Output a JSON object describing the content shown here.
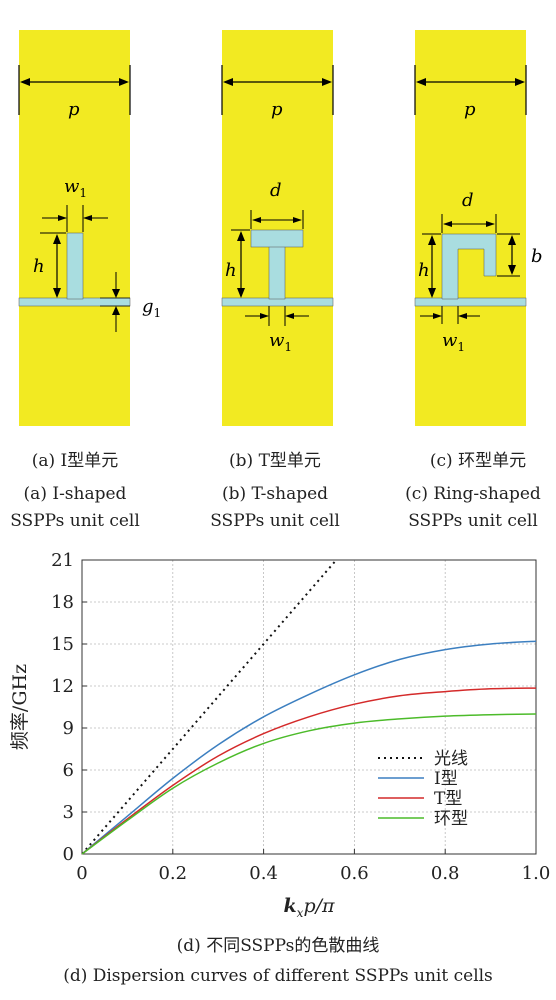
{
  "cells": [
    {
      "id": "a",
      "label_p": "p",
      "label_w": "w",
      "label_w_sub": "1",
      "label_h": "h",
      "label_g": "g",
      "label_g_sub": "1",
      "caption_cn": "(a) I型单元",
      "caption_en_1": "(a) I-shaped",
      "caption_en_2": "SSPPs unit cell"
    },
    {
      "id": "b",
      "label_p": "p",
      "label_d": "d",
      "label_h": "h",
      "label_w": "w",
      "label_w_sub": "1",
      "caption_cn": "(b) T型单元",
      "caption_en_1": "(b) T-shaped",
      "caption_en_2": "SSPPs unit cell"
    },
    {
      "id": "c",
      "label_p": "p",
      "label_d": "d",
      "label_h": "h",
      "label_b": "b",
      "label_w": "w",
      "label_w_sub": "1",
      "caption_cn": "(c) 环型单元",
      "caption_en_1": "(c) Ring-shaped",
      "caption_en_2": "SSPPs unit cell"
    }
  ],
  "colors": {
    "metal": "#f2ea22",
    "substrate_strip": "#a9dde0",
    "light_line": "#111111",
    "I": "#3c7fc0",
    "T": "#d42a2a",
    "ring": "#4cbb2a"
  },
  "chart_data": {
    "type": "line",
    "xlabel_main": "k",
    "xlabel_sub": "x",
    "xlabel_rest": "p/π",
    "ylabel": "频率/GHz",
    "xlim": [
      0,
      1.0
    ],
    "ylim": [
      0,
      21
    ],
    "xticks": [
      "0",
      "0.2",
      "0.4",
      "0.6",
      "0.8",
      "1.0"
    ],
    "yticks": [
      "0",
      "3",
      "6",
      "9",
      "12",
      "15",
      "18",
      "21"
    ],
    "grid": true,
    "legend_position": "center-right",
    "series": [
      {
        "name": "光线",
        "style": "dotted",
        "color": "#111111",
        "x": [
          0,
          0.1,
          0.2,
          0.3,
          0.4,
          0.5,
          0.56
        ],
        "y": [
          0,
          3.75,
          7.5,
          11.25,
          15.0,
          18.75,
          21.0
        ]
      },
      {
        "name": "I型",
        "style": "solid",
        "color": "#3c7fc0",
        "x": [
          0,
          0.1,
          0.2,
          0.3,
          0.4,
          0.5,
          0.6,
          0.7,
          0.8,
          0.9,
          1.0
        ],
        "y": [
          0,
          2.7,
          5.4,
          7.8,
          9.8,
          11.4,
          12.8,
          13.9,
          14.6,
          15.0,
          15.2
        ]
      },
      {
        "name": "T型",
        "style": "solid",
        "color": "#d42a2a",
        "x": [
          0,
          0.1,
          0.2,
          0.3,
          0.4,
          0.5,
          0.6,
          0.7,
          0.8,
          0.9,
          1.0
        ],
        "y": [
          0,
          2.5,
          4.9,
          7.0,
          8.6,
          9.8,
          10.7,
          11.3,
          11.6,
          11.8,
          11.85
        ]
      },
      {
        "name": "环型",
        "style": "solid",
        "color": "#4cbb2a",
        "x": [
          0,
          0.1,
          0.2,
          0.3,
          0.4,
          0.5,
          0.6,
          0.7,
          0.8,
          0.9,
          1.0
        ],
        "y": [
          0,
          2.4,
          4.7,
          6.5,
          7.9,
          8.8,
          9.35,
          9.65,
          9.85,
          9.95,
          10.0
        ]
      }
    ]
  },
  "figure_caption_cn": "(d) 不同SSPPs的色散曲线",
  "figure_caption_en": "(d) Dispersion curves of different SSPPs unit cells"
}
